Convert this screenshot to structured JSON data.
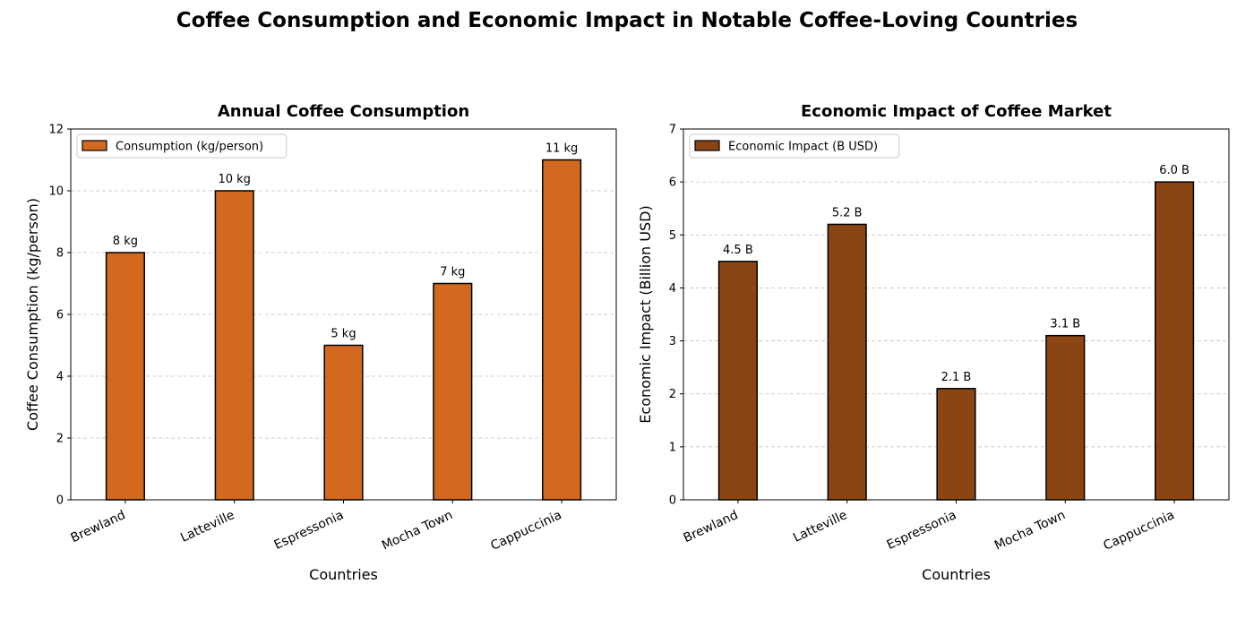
{
  "figure": {
    "title": "Coffee Consumption and Economic Impact in Notable Coffee-Loving Countries"
  },
  "chart_data": [
    {
      "type": "bar",
      "title": "Annual Coffee Consumption",
      "xlabel": "Countries",
      "ylabel": "Coffee Consumption (kg/person)",
      "categories": [
        "Brewland",
        "Latteville",
        "Espressonia",
        "Mocha Town",
        "Cappuccinia"
      ],
      "series": [
        {
          "name": "Consumption (kg/person)",
          "values": [
            8,
            10,
            5,
            7,
            11
          ],
          "color": "#D2691E"
        }
      ],
      "data_labels": [
        "8 kg",
        "10 kg",
        "5 kg",
        "7 kg",
        "11 kg"
      ],
      "ylim": [
        0,
        12
      ],
      "yticks": [
        "0",
        "2",
        "4",
        "6",
        "8",
        "10",
        "12"
      ],
      "grid": "y-dashed",
      "legend": "top-left"
    },
    {
      "type": "bar",
      "title": "Economic Impact of Coffee Market",
      "xlabel": "Countries",
      "ylabel": "Economic Impact (Billion USD)",
      "categories": [
        "Brewland",
        "Latteville",
        "Espressonia",
        "Mocha Town",
        "Cappuccinia"
      ],
      "series": [
        {
          "name": "Economic Impact (B USD)",
          "values": [
            4.5,
            5.2,
            2.1,
            3.1,
            6.0
          ],
          "color": "#8B4513"
        }
      ],
      "data_labels": [
        "4.5 B",
        "5.2 B",
        "2.1 B",
        "3.1 B",
        "6.0 B"
      ],
      "ylim": [
        0,
        7
      ],
      "yticks": [
        "0",
        "1",
        "2",
        "3",
        "4",
        "5",
        "6",
        "7"
      ],
      "grid": "y-dashed",
      "legend": "top-left"
    }
  ]
}
